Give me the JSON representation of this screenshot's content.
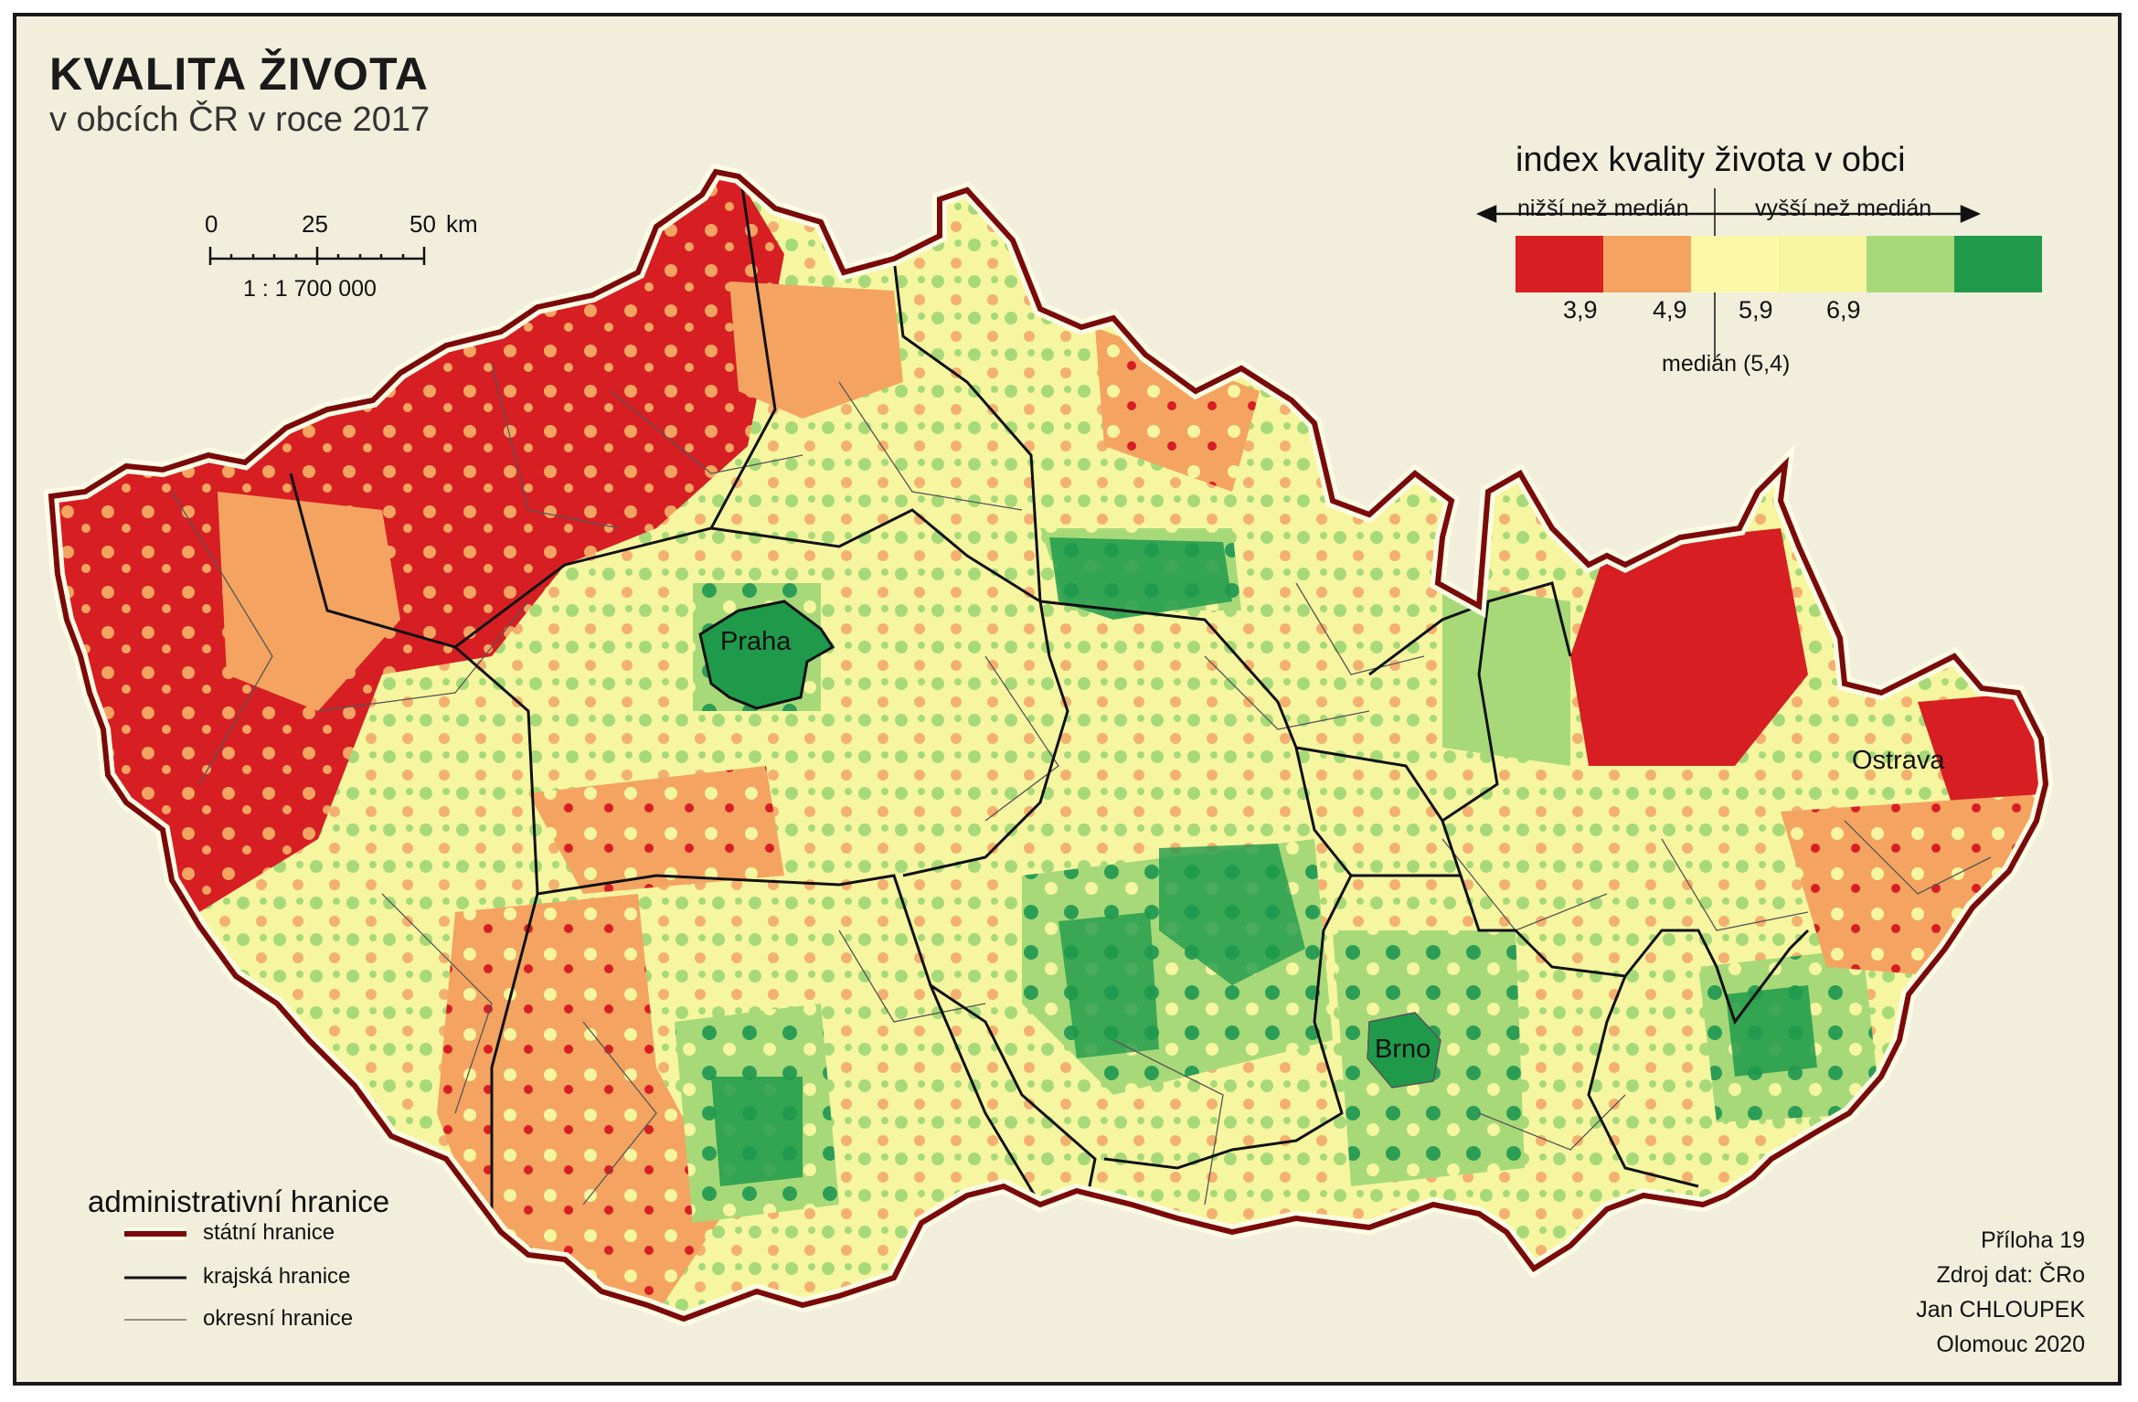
{
  "title": "KVALITA ŽIVOTA",
  "subtitle": "v obcích ČR v roce 2017",
  "scale": {
    "ticks": [
      "0",
      "25",
      "50"
    ],
    "unit": "km",
    "ratio": "1 : 1 700 000"
  },
  "legend": {
    "title": "index kvality života v  obci",
    "lower_label": "nižší než medián",
    "upper_label": "vyšší než medián",
    "median_label": "medián (5,4)",
    "breaks": [
      "3,9",
      "4,9",
      "5,9",
      "6,9"
    ],
    "colors": [
      "#d71e23",
      "#f4a460",
      "#fdf8a8",
      "#f6f6a0",
      "#a7d979",
      "#1f9a4b"
    ]
  },
  "admin_legend": {
    "title": "administrativní hranice",
    "items": [
      {
        "label": "státní hranice",
        "color": "#7a0a0a"
      },
      {
        "label": "krajská hranice",
        "color": "#111111"
      },
      {
        "label": "okresní hranice",
        "color": "#555555"
      }
    ]
  },
  "cities": [
    "Praha",
    "Brno",
    "Ostrava"
  ],
  "credits": [
    "Příloha 19",
    "Zdroj dat: ČRo",
    "Jan CHLOUPEK",
    "Olomouc 2020"
  ]
}
